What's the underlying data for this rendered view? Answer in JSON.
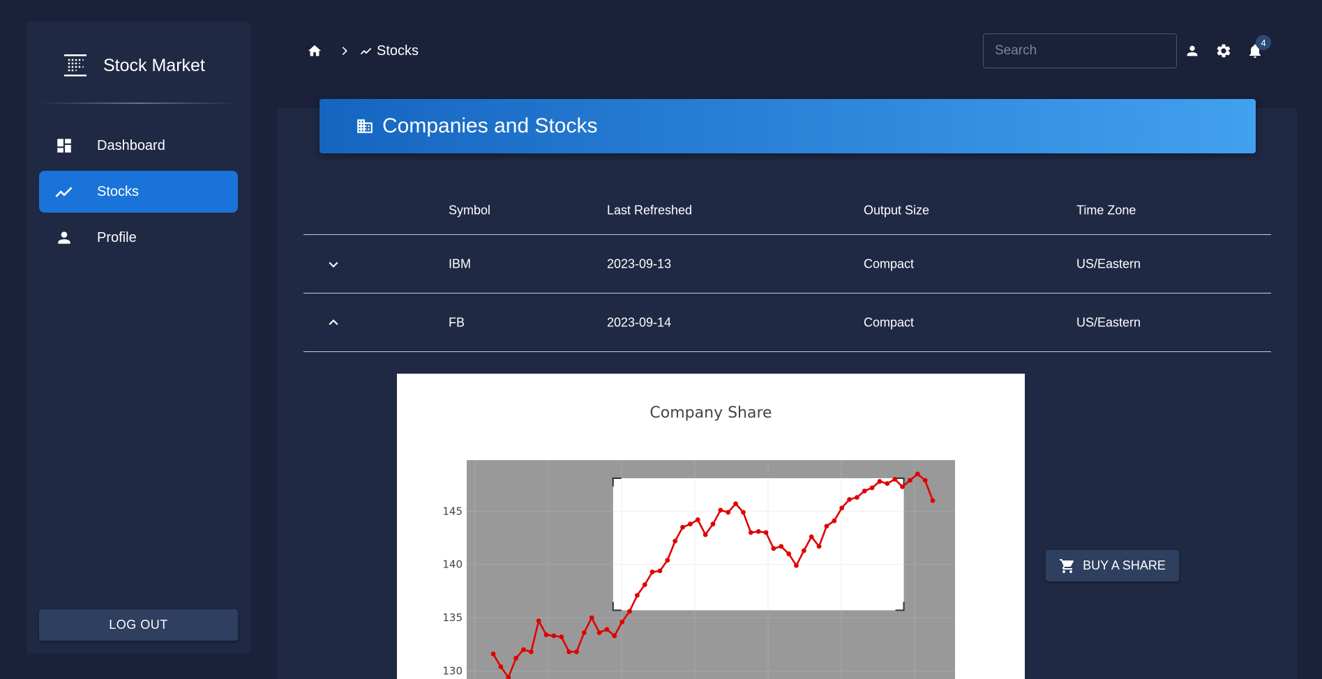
{
  "app": {
    "title": "Stock Market"
  },
  "sidebar": {
    "items": [
      {
        "label": "Dashboard",
        "icon": "dashboard-icon",
        "active": false
      },
      {
        "label": "Stocks",
        "icon": "trending-up-icon",
        "active": true
      },
      {
        "label": "Profile",
        "icon": "person-icon",
        "active": false
      }
    ],
    "logout_label": "LOG OUT"
  },
  "header": {
    "breadcrumb": {
      "current": "Stocks"
    },
    "search": {
      "placeholder": "Search",
      "value": ""
    },
    "notifications_count": "4"
  },
  "page": {
    "title": "Companies and Stocks"
  },
  "table": {
    "columns": [
      "Symbol",
      "Last Refreshed",
      "Output Size",
      "Time Zone"
    ],
    "rows": [
      {
        "symbol": "IBM",
        "last_refreshed": "2023-09-13",
        "output_size": "Compact",
        "time_zone": "US/Eastern",
        "expanded": false
      },
      {
        "symbol": "FB",
        "last_refreshed": "2023-09-14",
        "output_size": "Compact",
        "time_zone": "US/Eastern",
        "expanded": true
      }
    ]
  },
  "buy_label": "BUY A SHARE",
  "colors": {
    "accent": "#1a73d8",
    "series": "#e00000",
    "background": "#1b2138",
    "panel": "#1f2943"
  },
  "chart_data": {
    "type": "line",
    "title": "Company Share",
    "xlabel": "",
    "ylabel": "",
    "ylim": [
      128.2,
      149.8
    ],
    "y_ticks": [
      130,
      135,
      140,
      145
    ],
    "grid": true,
    "series": [
      {
        "name": "",
        "values": [
          131.6,
          130.4,
          129.4,
          131.2,
          132.0,
          131.8,
          134.7,
          133.4,
          133.3,
          133.2,
          131.8,
          131.8,
          133.6,
          135.0,
          133.6,
          133.9,
          133.3,
          134.6,
          135.6,
          137.1,
          138.1,
          139.3,
          139.4,
          140.4,
          142.2,
          143.5,
          143.8,
          144.2,
          142.8,
          143.8,
          145.1,
          144.9,
          145.7,
          144.9,
          143.0,
          143.1,
          143.0,
          141.5,
          141.7,
          141.0,
          139.9,
          141.3,
          142.6,
          141.7,
          143.6,
          144.1,
          145.3,
          146.1,
          146.3,
          146.9,
          147.2,
          147.8,
          147.6,
          148.0,
          147.3,
          147.9,
          148.5,
          147.9,
          146.0
        ]
      }
    ],
    "selection": {
      "x_start_index": 16,
      "x_end_index": 54,
      "y_range": [
        135.7,
        148.1
      ]
    }
  }
}
